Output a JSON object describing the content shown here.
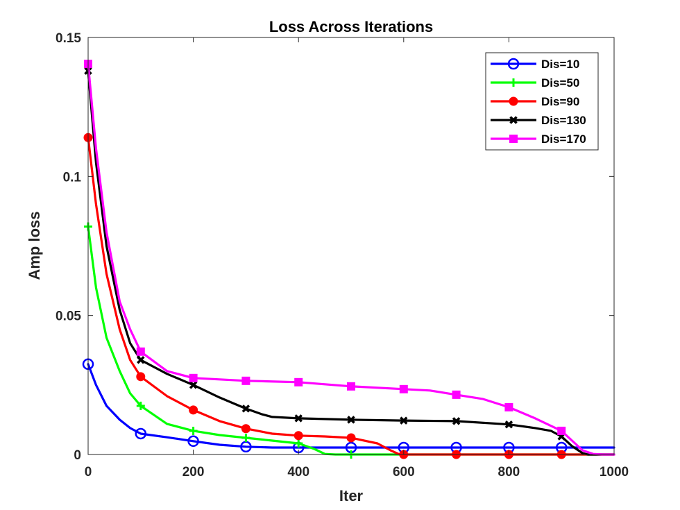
{
  "chart_data": {
    "type": "line",
    "title": "Loss Across Iterations",
    "xlabel": "Iter",
    "ylabel": "Amp loss",
    "xlim": [
      0,
      1000
    ],
    "ylim": [
      0,
      0.15
    ],
    "xticks": [
      0,
      200,
      400,
      600,
      800,
      1000
    ],
    "yticks": [
      0,
      0.05,
      0.1,
      0.15
    ],
    "xtick_labels": [
      "0",
      "200",
      "400",
      "600",
      "800",
      "1000"
    ],
    "ytick_labels": [
      "0",
      "0.05",
      "0.1",
      "0.15"
    ],
    "grid": false,
    "legend_position": "top-right",
    "series": [
      {
        "name": "Dis=10",
        "color": "#0000ff",
        "marker": "circle",
        "x": [
          0,
          15,
          35,
          60,
          80,
          100,
          150,
          200,
          250,
          300,
          350,
          400,
          450,
          500,
          600,
          700,
          800,
          900,
          1000
        ],
        "y": [
          0.0325,
          0.025,
          0.0175,
          0.0125,
          0.0095,
          0.0075,
          0.0062,
          0.0048,
          0.0035,
          0.0028,
          0.0025,
          0.0025,
          0.0025,
          0.0025,
          0.0025,
          0.0025,
          0.0025,
          0.0025,
          0.0025
        ],
        "marker_x": [
          0,
          100,
          200,
          300,
          400,
          500,
          600,
          700,
          800,
          900
        ],
        "marker_y": [
          0.0325,
          0.0075,
          0.0048,
          0.0028,
          0.0025,
          0.0025,
          0.0025,
          0.0025,
          0.0025,
          0.0025
        ]
      },
      {
        "name": "Dis=50",
        "color": "#00ff00",
        "marker": "plus",
        "x": [
          0,
          15,
          35,
          60,
          80,
          100,
          150,
          200,
          250,
          300,
          350,
          400,
          430,
          450,
          470,
          500,
          600,
          700,
          800,
          900,
          1000
        ],
        "y": [
          0.082,
          0.06,
          0.042,
          0.03,
          0.022,
          0.0175,
          0.011,
          0.0085,
          0.007,
          0.006,
          0.005,
          0.004,
          0.002,
          0.0002,
          0.0,
          0.0,
          0.0,
          0.0,
          0.0,
          0.0,
          0.0
        ],
        "marker_x": [
          0,
          100,
          200,
          300,
          400,
          500
        ],
        "marker_y": [
          0.082,
          0.0175,
          0.0085,
          0.006,
          0.004,
          0.0
        ]
      },
      {
        "name": "Dis=90",
        "color": "#ff0000",
        "marker": "dot",
        "x": [
          0,
          15,
          35,
          60,
          80,
          100,
          150,
          200,
          250,
          300,
          350,
          400,
          450,
          500,
          550,
          575,
          590,
          600,
          700,
          800,
          900,
          1000
        ],
        "y": [
          0.114,
          0.09,
          0.065,
          0.045,
          0.034,
          0.028,
          0.021,
          0.016,
          0.012,
          0.0093,
          0.0075,
          0.0068,
          0.0065,
          0.006,
          0.004,
          0.0015,
          0.0002,
          0.0,
          0.0,
          0.0,
          0.0,
          0.0
        ],
        "marker_x": [
          0,
          100,
          200,
          300,
          400,
          500,
          600,
          700,
          800,
          900
        ],
        "marker_y": [
          0.114,
          0.028,
          0.016,
          0.0093,
          0.0068,
          0.006,
          0.0,
          0.0,
          0.0,
          0.0
        ]
      },
      {
        "name": "Dis=130",
        "color": "#000000",
        "marker": "x",
        "x": [
          0,
          15,
          35,
          60,
          80,
          100,
          150,
          200,
          250,
          300,
          330,
          350,
          400,
          500,
          600,
          700,
          800,
          850,
          880,
          900,
          920,
          940,
          950,
          1000
        ],
        "y": [
          0.138,
          0.105,
          0.075,
          0.052,
          0.04,
          0.034,
          0.029,
          0.025,
          0.0205,
          0.0165,
          0.0145,
          0.0135,
          0.013,
          0.0125,
          0.0122,
          0.012,
          0.0108,
          0.0095,
          0.0085,
          0.0065,
          0.003,
          0.0005,
          0.0,
          0.0
        ],
        "marker_x": [
          0,
          100,
          200,
          300,
          400,
          500,
          600,
          700,
          800,
          900
        ],
        "marker_y": [
          0.138,
          0.034,
          0.025,
          0.0165,
          0.013,
          0.0125,
          0.0122,
          0.012,
          0.0108,
          0.0065
        ]
      },
      {
        "name": "Dis=170",
        "color": "#ff00ff",
        "marker": "square",
        "x": [
          0,
          15,
          35,
          60,
          80,
          100,
          150,
          200,
          300,
          400,
          500,
          600,
          650,
          700,
          750,
          800,
          850,
          900,
          920,
          940,
          960,
          980,
          1000
        ],
        "y": [
          0.1405,
          0.11,
          0.08,
          0.055,
          0.045,
          0.037,
          0.03,
          0.0275,
          0.0265,
          0.026,
          0.0245,
          0.0235,
          0.023,
          0.0215,
          0.02,
          0.017,
          0.013,
          0.0085,
          0.005,
          0.0015,
          0.0002,
          0.0,
          0.0
        ],
        "marker_x": [
          0,
          100,
          200,
          300,
          400,
          500,
          600,
          700,
          800,
          900
        ],
        "marker_y": [
          0.1405,
          0.037,
          0.0275,
          0.0265,
          0.026,
          0.0245,
          0.0235,
          0.0215,
          0.017,
          0.0085
        ]
      }
    ]
  }
}
